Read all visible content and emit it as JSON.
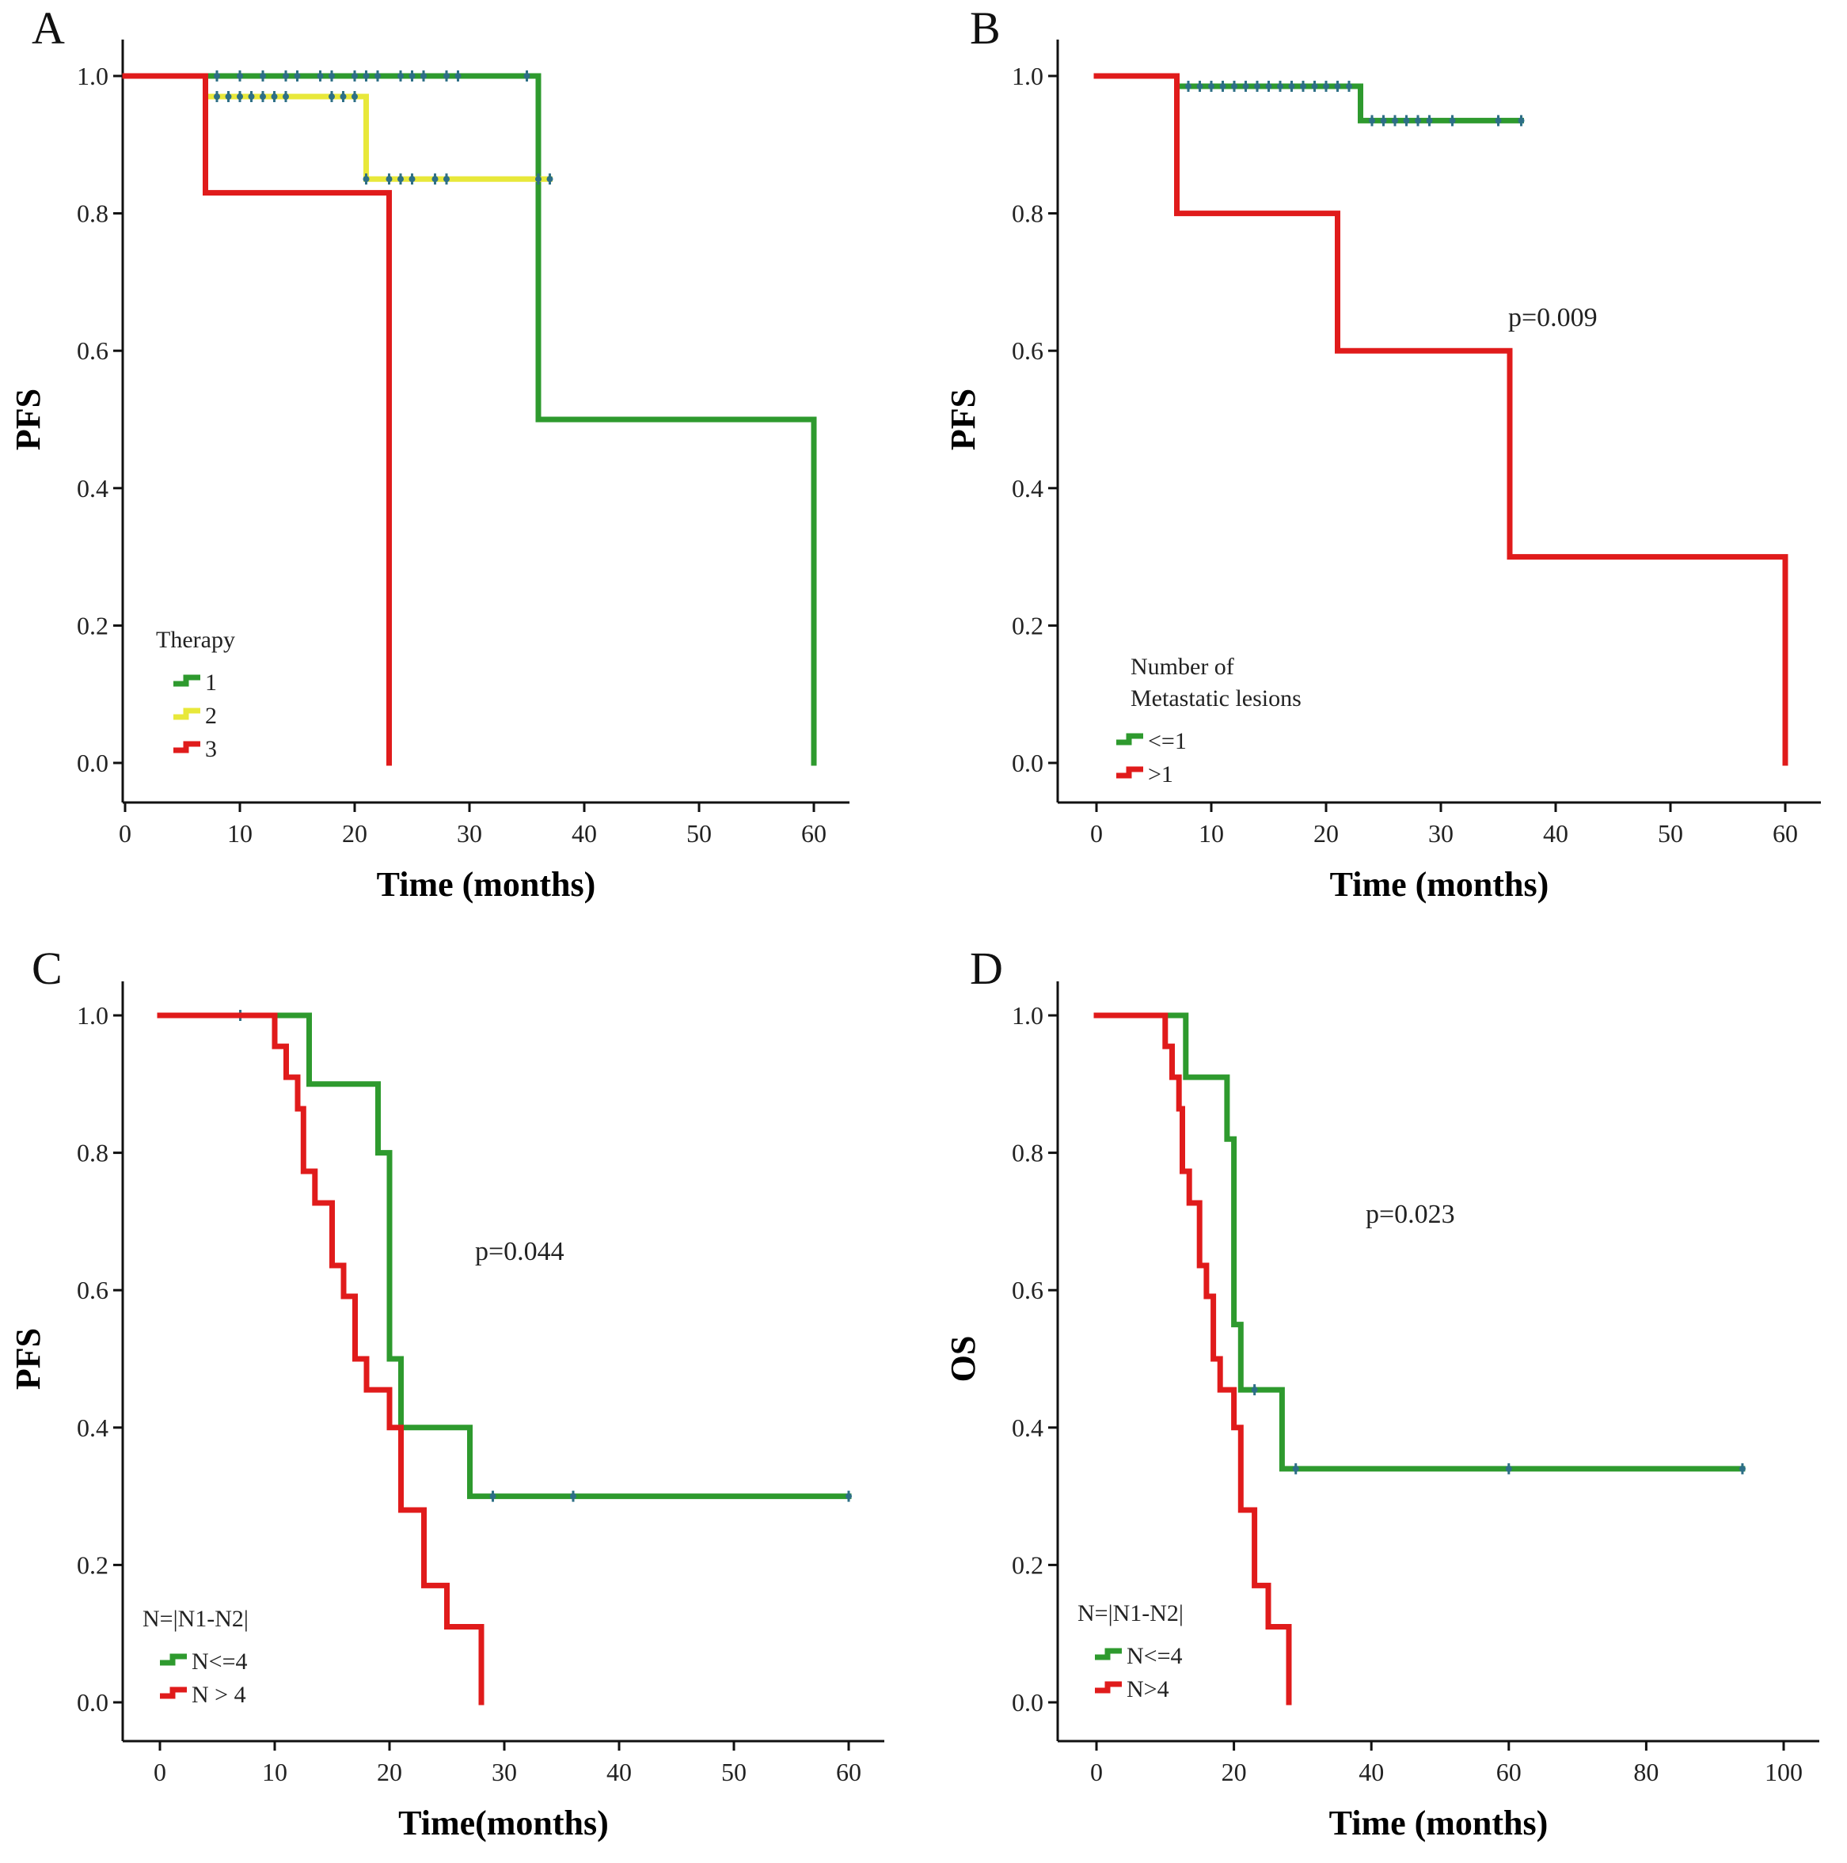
{
  "colors": {
    "green": "#2e9a2e",
    "yellow": "#e8e83a",
    "red": "#e01b1b",
    "censor": "#2d6f86"
  },
  "chart_data": [
    {
      "panel": "A",
      "type": "line",
      "step": true,
      "xlabel": "Time (months)",
      "ylabel": "PFS",
      "xlim": [
        0,
        60
      ],
      "ylim": [
        0,
        1
      ],
      "xticks": [
        "0",
        "10",
        "20",
        "30",
        "40",
        "50",
        "60"
      ],
      "yticks": [
        "0.0",
        "0.2",
        "0.4",
        "0.6",
        "0.8",
        "1.0"
      ],
      "legend": {
        "title": "Therapy",
        "entries": [
          "1",
          "2",
          "3"
        ],
        "position": "bottom-left"
      },
      "pvalue": null,
      "series": [
        {
          "name": "1",
          "color": "green",
          "steps": [
            [
              0,
              1.0
            ],
            [
              36,
              1.0
            ],
            [
              36,
              0.5
            ],
            [
              60,
              0.5
            ],
            [
              60,
              0.0
            ]
          ],
          "censors": [
            [
              8,
              1.0
            ],
            [
              10,
              1.0
            ],
            [
              12,
              1.0
            ],
            [
              14,
              1.0
            ],
            [
              15,
              1.0
            ],
            [
              17,
              1.0
            ],
            [
              18,
              1.0
            ],
            [
              20,
              1.0
            ],
            [
              21,
              1.0
            ],
            [
              22,
              1.0
            ],
            [
              24,
              1.0
            ],
            [
              25,
              1.0
            ],
            [
              26,
              1.0
            ],
            [
              28,
              1.0
            ],
            [
              29,
              1.0
            ],
            [
              35,
              1.0
            ]
          ]
        },
        {
          "name": "2",
          "color": "yellow",
          "steps": [
            [
              7,
              0.97
            ],
            [
              21,
              0.97
            ],
            [
              21,
              0.85
            ],
            [
              37,
              0.85
            ]
          ],
          "censors": [
            [
              8,
              0.97
            ],
            [
              9,
              0.97
            ],
            [
              10,
              0.97
            ],
            [
              11,
              0.97
            ],
            [
              12,
              0.97
            ],
            [
              13,
              0.97
            ],
            [
              14,
              0.97
            ],
            [
              18,
              0.97
            ],
            [
              19,
              0.97
            ],
            [
              20,
              0.97
            ],
            [
              21,
              0.85
            ],
            [
              23,
              0.85
            ],
            [
              24,
              0.85
            ],
            [
              25,
              0.85
            ],
            [
              27,
              0.85
            ],
            [
              28,
              0.85
            ],
            [
              36,
              0.85
            ],
            [
              37,
              0.85
            ]
          ]
        },
        {
          "name": "3",
          "color": "red",
          "steps": [
            [
              0,
              1.0
            ],
            [
              7,
              1.0
            ],
            [
              7,
              0.83
            ],
            [
              23,
              0.83
            ],
            [
              23,
              0.0
            ]
          ],
          "censors": []
        }
      ]
    },
    {
      "panel": "B",
      "type": "line",
      "step": true,
      "xlabel": "Time (months)",
      "ylabel": "PFS",
      "xlim": [
        0,
        60
      ],
      "ylim": [
        0,
        1
      ],
      "xticks": [
        "0",
        "10",
        "20",
        "30",
        "40",
        "50",
        "60"
      ],
      "yticks": [
        "0.0",
        "0.2",
        "0.4",
        "0.6",
        "0.8",
        "1.0"
      ],
      "legend": {
        "title_lines": [
          "Number of",
          "Metastatic lesions"
        ],
        "entries": [
          "<=1",
          ">1"
        ],
        "position": "bottom-left"
      },
      "pvalue": "p=0.009",
      "series": [
        {
          "name": "<=1",
          "color": "green",
          "steps": [
            [
              0,
              1.0
            ],
            [
              7,
              1.0
            ],
            [
              7,
              0.985
            ],
            [
              23,
              0.985
            ],
            [
              23,
              0.935
            ],
            [
              37,
              0.935
            ]
          ],
          "censors": [
            [
              8,
              0.985
            ],
            [
              9,
              0.985
            ],
            [
              10,
              0.985
            ],
            [
              11,
              0.985
            ],
            [
              12,
              0.985
            ],
            [
              13,
              0.985
            ],
            [
              14,
              0.985
            ],
            [
              15,
              0.985
            ],
            [
              16,
              0.985
            ],
            [
              17,
              0.985
            ],
            [
              18,
              0.985
            ],
            [
              19,
              0.985
            ],
            [
              20,
              0.985
            ],
            [
              21,
              0.985
            ],
            [
              22,
              0.985
            ],
            [
              24,
              0.935
            ],
            [
              25,
              0.935
            ],
            [
              26,
              0.935
            ],
            [
              27,
              0.935
            ],
            [
              28,
              0.935
            ],
            [
              29,
              0.935
            ],
            [
              31,
              0.935
            ],
            [
              35,
              0.935
            ],
            [
              37,
              0.935
            ]
          ]
        },
        {
          "name": ">1",
          "color": "red",
          "steps": [
            [
              0,
              1.0
            ],
            [
              7,
              1.0
            ],
            [
              7,
              0.8
            ],
            [
              21,
              0.8
            ],
            [
              21,
              0.6
            ],
            [
              36,
              0.6
            ],
            [
              36,
              0.3
            ],
            [
              60,
              0.3
            ],
            [
              60,
              0.0
            ]
          ],
          "censors": []
        }
      ]
    },
    {
      "panel": "C",
      "type": "line",
      "step": true,
      "xlabel": "Time(months)",
      "ylabel": "PFS",
      "xlim": [
        0,
        60
      ],
      "ylim": [
        0,
        1
      ],
      "xticks": [
        "0",
        "10",
        "20",
        "30",
        "40",
        "50",
        "60"
      ],
      "yticks": [
        "0.0",
        "0.2",
        "0.4",
        "0.6",
        "0.8",
        "1.0"
      ],
      "legend": {
        "title": "N=|N1-N2|",
        "entries": [
          "N<=4",
          "N > 4"
        ],
        "position": "bottom-left"
      },
      "pvalue": "p=0.044",
      "series": [
        {
          "name": "N<=4",
          "color": "green",
          "steps": [
            [
              0,
              1.0
            ],
            [
              13,
              1.0
            ],
            [
              13,
              0.9
            ],
            [
              19,
              0.9
            ],
            [
              19,
              0.8
            ],
            [
              20,
              0.8
            ],
            [
              20,
              0.5
            ],
            [
              21,
              0.5
            ],
            [
              21,
              0.4
            ],
            [
              27,
              0.4
            ],
            [
              27,
              0.3
            ],
            [
              60,
              0.3
            ]
          ],
          "censors": [
            [
              7,
              1.0
            ],
            [
              29,
              0.3
            ],
            [
              36,
              0.3
            ],
            [
              60,
              0.3
            ]
          ]
        },
        {
          "name": "N > 4",
          "color": "red",
          "steps": [
            [
              0,
              1.0
            ],
            [
              10,
              1.0
            ],
            [
              10,
              0.955
            ],
            [
              11,
              0.955
            ],
            [
              11,
              0.91
            ],
            [
              12,
              0.91
            ],
            [
              12,
              0.864
            ],
            [
              12.5,
              0.864
            ],
            [
              12.5,
              0.773
            ],
            [
              13.5,
              0.773
            ],
            [
              13.5,
              0.727
            ],
            [
              15,
              0.727
            ],
            [
              15,
              0.636
            ],
            [
              16,
              0.636
            ],
            [
              16,
              0.591
            ],
            [
              17,
              0.591
            ],
            [
              17,
              0.5
            ],
            [
              18,
              0.5
            ],
            [
              18,
              0.455
            ],
            [
              20,
              0.455
            ],
            [
              20,
              0.4
            ],
            [
              21,
              0.4
            ],
            [
              21,
              0.28
            ],
            [
              23,
              0.28
            ],
            [
              23,
              0.17
            ],
            [
              25,
              0.17
            ],
            [
              25,
              0.11
            ],
            [
              28,
              0.11
            ],
            [
              28,
              0.0
            ]
          ],
          "censors": []
        }
      ]
    },
    {
      "panel": "D",
      "type": "line",
      "step": true,
      "xlabel": "Time (months)",
      "ylabel": "OS",
      "xlim": [
        0,
        100
      ],
      "ylim": [
        0,
        1
      ],
      "xticks": [
        "0",
        "20",
        "40",
        "60",
        "80",
        "100"
      ],
      "yticks": [
        "0.0",
        "0.2",
        "0.4",
        "0.6",
        "0.8",
        "1.0"
      ],
      "legend": {
        "title": "N=|N1-N2|",
        "entries": [
          "N<=4",
          "N>4"
        ],
        "position": "bottom-left"
      },
      "pvalue": "p=0.023",
      "series": [
        {
          "name": "N<=4",
          "color": "green",
          "steps": [
            [
              0,
              1.0
            ],
            [
              13,
              1.0
            ],
            [
              13,
              0.91
            ],
            [
              19,
              0.91
            ],
            [
              19,
              0.82
            ],
            [
              20,
              0.82
            ],
            [
              20,
              0.55
            ],
            [
              21,
              0.55
            ],
            [
              21,
              0.455
            ],
            [
              27,
              0.455
            ],
            [
              27,
              0.34
            ],
            [
              94,
              0.34
            ]
          ],
          "censors": [
            [
              23,
              0.455
            ],
            [
              29,
              0.34
            ],
            [
              60,
              0.34
            ],
            [
              94,
              0.34
            ]
          ]
        },
        {
          "name": "N>4",
          "color": "red",
          "steps": [
            [
              0,
              1.0
            ],
            [
              10,
              1.0
            ],
            [
              10,
              0.955
            ],
            [
              11,
              0.955
            ],
            [
              11,
              0.91
            ],
            [
              12,
              0.91
            ],
            [
              12,
              0.864
            ],
            [
              12.5,
              0.864
            ],
            [
              12.5,
              0.773
            ],
            [
              13.5,
              0.773
            ],
            [
              13.5,
              0.727
            ],
            [
              15,
              0.727
            ],
            [
              15,
              0.636
            ],
            [
              16,
              0.636
            ],
            [
              16,
              0.591
            ],
            [
              17,
              0.591
            ],
            [
              17,
              0.5
            ],
            [
              18,
              0.5
            ],
            [
              18,
              0.455
            ],
            [
              20,
              0.455
            ],
            [
              20,
              0.4
            ],
            [
              21,
              0.4
            ],
            [
              21,
              0.28
            ],
            [
              23,
              0.28
            ],
            [
              23,
              0.17
            ],
            [
              25,
              0.17
            ],
            [
              25,
              0.11
            ],
            [
              28,
              0.11
            ],
            [
              28,
              0.0
            ]
          ],
          "censors": []
        }
      ]
    }
  ]
}
